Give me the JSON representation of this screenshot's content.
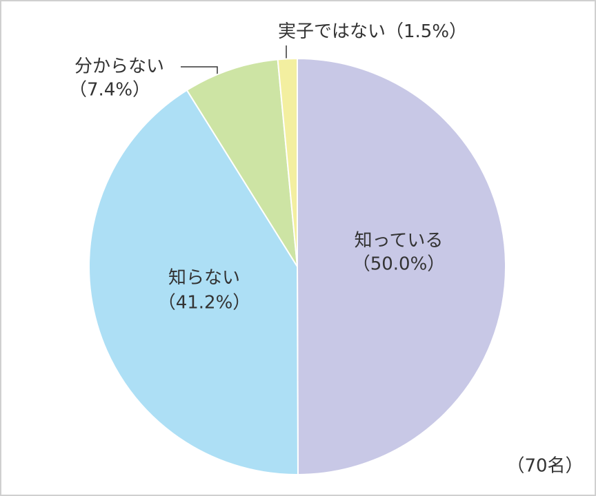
{
  "chart_data": {
    "type": "pie",
    "categories": [
      "知っている",
      "知らない",
      "分からない",
      "実子ではない"
    ],
    "values": [
      50.0,
      41.2,
      7.4,
      1.5
    ],
    "value_labels": [
      "（50.0%）",
      "（41.2%）",
      "（7.4%）",
      "（1.5%）"
    ],
    "colors": [
      "#c8c8e6",
      "#addff5",
      "#cde4a4",
      "#f3efa0"
    ],
    "note": "（70名）"
  }
}
